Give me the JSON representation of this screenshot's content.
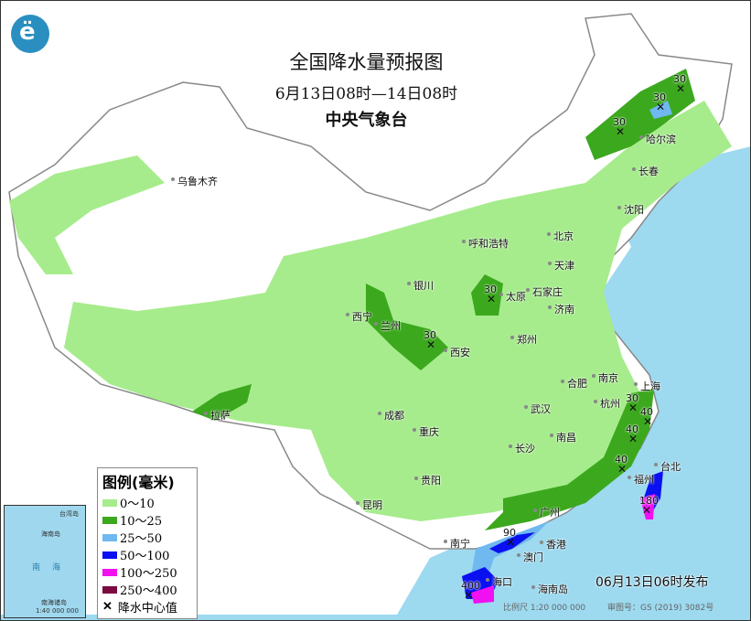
{
  "header": {
    "title": "全国降水量预报图",
    "period": "6月13日08时—14日08时",
    "issuer": "中央气象台",
    "logo_icon": "cma-logo"
  },
  "colors": {
    "sea": "#9dd9ef",
    "land": "#ffffff",
    "c0_10": "#a6ec8c",
    "c10_25": "#3ca81e",
    "c25_50": "#6fb8f0",
    "c50_100": "#0a10f0",
    "c100_250": "#f010f0",
    "c250_400": "#7a0a40"
  },
  "legend": {
    "title": "图例(毫米)",
    "items": [
      {
        "label": "0～10",
        "color": "#a6ec8c"
      },
      {
        "label": "10～25",
        "color": "#3ca81e"
      },
      {
        "label": "25～50",
        "color": "#6fb8f0"
      },
      {
        "label": "50～100",
        "color": "#0a10f0"
      },
      {
        "label": "100～250",
        "color": "#f010f0"
      },
      {
        "label": "250～400",
        "color": "#7a0a40"
      }
    ],
    "center_label": "降水中心值",
    "center_icon": "x-mark"
  },
  "cities": [
    "乌鲁木齐",
    "呼和浩特",
    "北京",
    "天津",
    "石家庄",
    "太原",
    "银川",
    "西宁",
    "兰州",
    "西安",
    "郑州",
    "济南",
    "哈尔滨",
    "长春",
    "沈阳",
    "南京",
    "合肥",
    "上海",
    "杭州",
    "武汉",
    "成都",
    "重庆",
    "长沙",
    "南昌",
    "拉萨",
    "贵阳",
    "昆明",
    "福州",
    "台北",
    "广州",
    "南宁",
    "澳门",
    "香港",
    "海口",
    "海南岛"
  ],
  "centers": [
    "30",
    "30",
    "30",
    "30",
    "30",
    "30",
    "40",
    "40",
    "40",
    "180",
    "90",
    "400"
  ],
  "inset": {
    "labels": [
      "海南岛",
      "台湾岛",
      "南",
      "海",
      "南海诸岛",
      "1:40 000 000"
    ]
  },
  "footer": {
    "issued": "06月13日06时发布",
    "scale": "比例尺 1:20 000 000",
    "review": "审图号：GS (2019) 3082号"
  }
}
